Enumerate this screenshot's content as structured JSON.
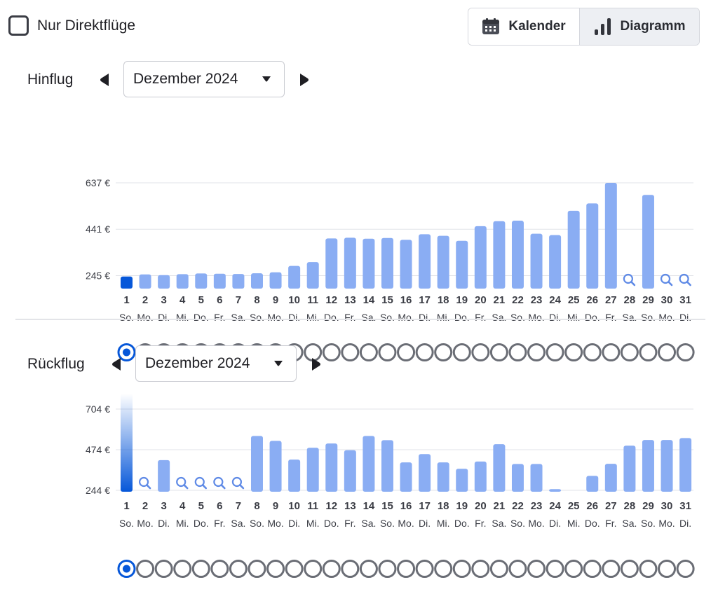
{
  "filter": {
    "direct_only_label": "Nur Direktflüge",
    "direct_only_checked": false
  },
  "view_toggle": {
    "calendar_label": "Kalender",
    "calendar_icon": "calendar-icon",
    "chart_label": "Diagramm",
    "chart_icon": "bar-chart-icon",
    "active": "Diagramm"
  },
  "colors": {
    "bar": "#8aadf3",
    "bar_selected": "#0657d9",
    "no_data_icon": "#5f8ae6",
    "text": "#1f1f24",
    "muted_text": "#3b3d45",
    "radio": "#6a6d75",
    "grid": "#e1e3e8"
  },
  "outbound": {
    "title": "Hinflug",
    "month": "Dezember 2024",
    "selected_day": 1,
    "chart_data": {
      "type": "bar",
      "x": [
        "1",
        "2",
        "3",
        "4",
        "5",
        "6",
        "7",
        "8",
        "9",
        "10",
        "11",
        "12",
        "13",
        "14",
        "15",
        "16",
        "17",
        "18",
        "19",
        "20",
        "21",
        "22",
        "23",
        "24",
        "25",
        "26",
        "27",
        "28",
        "29",
        "30",
        "31"
      ],
      "weekday_labels": [
        "So.",
        "Mo.",
        "Di.",
        "Mi.",
        "Do.",
        "Fr.",
        "Sa.",
        "So.",
        "Mo.",
        "Di.",
        "Mi.",
        "Do.",
        "Fr.",
        "Sa.",
        "So.",
        "Mo.",
        "Di.",
        "Mi.",
        "Do.",
        "Fr.",
        "Sa.",
        "So.",
        "Mo.",
        "Di.",
        "Mi.",
        "Do.",
        "Fr.",
        "Sa.",
        "So.",
        "Mo.",
        "Di."
      ],
      "values": [
        241,
        250,
        247,
        251,
        254,
        253,
        252,
        255,
        259,
        286,
        302,
        402,
        405,
        401,
        404,
        396,
        420,
        413,
        392,
        454,
        475,
        477,
        422,
        416,
        519,
        550,
        637,
        null,
        586,
        null,
        null
      ],
      "y_ticks": [
        245,
        441,
        637
      ],
      "y_tick_labels": [
        "245 €",
        "441 €",
        "637 €"
      ],
      "ylim": [
        196,
        637
      ],
      "no_price_icon": "search-icon",
      "grid": true
    }
  },
  "return": {
    "title": "Rückflug",
    "month": "Dezember 2024",
    "selected_day": 1,
    "chart_data": {
      "type": "bar",
      "x": [
        "1",
        "2",
        "3",
        "4",
        "5",
        "6",
        "7",
        "8",
        "9",
        "10",
        "11",
        "12",
        "13",
        "14",
        "15",
        "16",
        "17",
        "18",
        "19",
        "20",
        "21",
        "22",
        "23",
        "24",
        "25",
        "26",
        "27",
        "28",
        "29",
        "30",
        "31"
      ],
      "weekday_labels": [
        "So.",
        "Mo.",
        "Di.",
        "Mi.",
        "Do.",
        "Fr.",
        "Sa.",
        "So.",
        "Mo.",
        "Di.",
        "Mi.",
        "Do.",
        "Fr.",
        "Sa.",
        "So.",
        "Mo.",
        "Di.",
        "Mi.",
        "Do.",
        "Fr.",
        "Sa.",
        "So.",
        "Mo.",
        "Di.",
        "Mi.",
        "Do.",
        "Fr.",
        "Sa.",
        "So.",
        "Mo.",
        "Di."
      ],
      "values": [
        800,
        null,
        415,
        null,
        null,
        null,
        null,
        552,
        524,
        418,
        485,
        509,
        471,
        552,
        528,
        402,
        449,
        402,
        366,
        407,
        505,
        393,
        393,
        251,
        236,
        326,
        394,
        497,
        529,
        529,
        540
      ],
      "y_ticks": [
        244,
        474,
        704
      ],
      "y_tick_labels": [
        "244 €",
        "474 €",
        "704 €"
      ],
      "ylim": [
        244,
        704
      ],
      "no_price_icon": "search-icon",
      "grid": true
    }
  }
}
